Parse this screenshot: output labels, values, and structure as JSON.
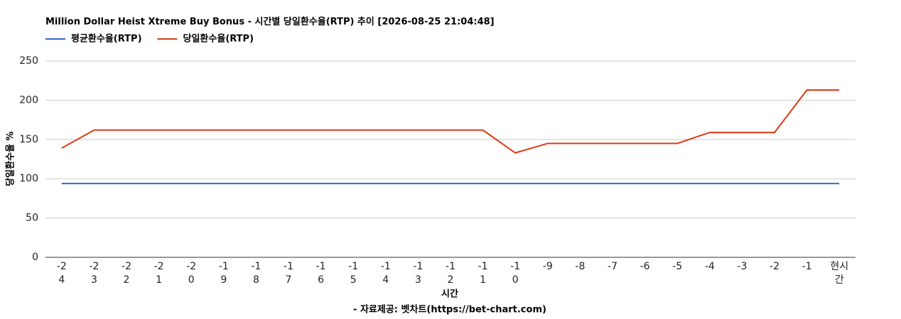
{
  "chart_data": {
    "type": "line",
    "title": "Million Dollar Heist Xtreme Buy Bonus - 시간별 당일환수율(RTP) 추이 [2026-08-25 21:04:48]",
    "x_label": "시간",
    "y_label": "당일환수율 %",
    "footer": "- 자료제공: 벳차트(https://bet-chart.com)",
    "categories": [
      "-24",
      "-23",
      "-22",
      "-21",
      "-20",
      "-19",
      "-18",
      "-17",
      "-16",
      "-15",
      "-14",
      "-13",
      "-12",
      "-11",
      "-10",
      "-9",
      "-8",
      "-7",
      "-6",
      "-5",
      "-4",
      "-3",
      "-2",
      "-1",
      "현시간"
    ],
    "series": [
      {
        "name": "평균환수율(RTP)",
        "color": "#3366cc",
        "values": [
          94,
          94,
          94,
          94,
          94,
          94,
          94,
          94,
          94,
          94,
          94,
          94,
          94,
          94,
          94,
          94,
          94,
          94,
          94,
          94,
          94,
          94,
          94,
          94,
          94
        ]
      },
      {
        "name": "당일환수율(RTP)",
        "color": "#dc3912",
        "values": [
          139,
          162,
          162,
          162,
          162,
          162,
          162,
          162,
          162,
          162,
          162,
          162,
          162,
          162,
          133,
          145,
          145,
          145,
          145,
          145,
          159,
          159,
          159,
          213,
          213
        ]
      }
    ],
    "ylim": [
      0,
      250
    ],
    "yticks": [
      0,
      50,
      100,
      150,
      200,
      250
    ],
    "grid": true
  }
}
